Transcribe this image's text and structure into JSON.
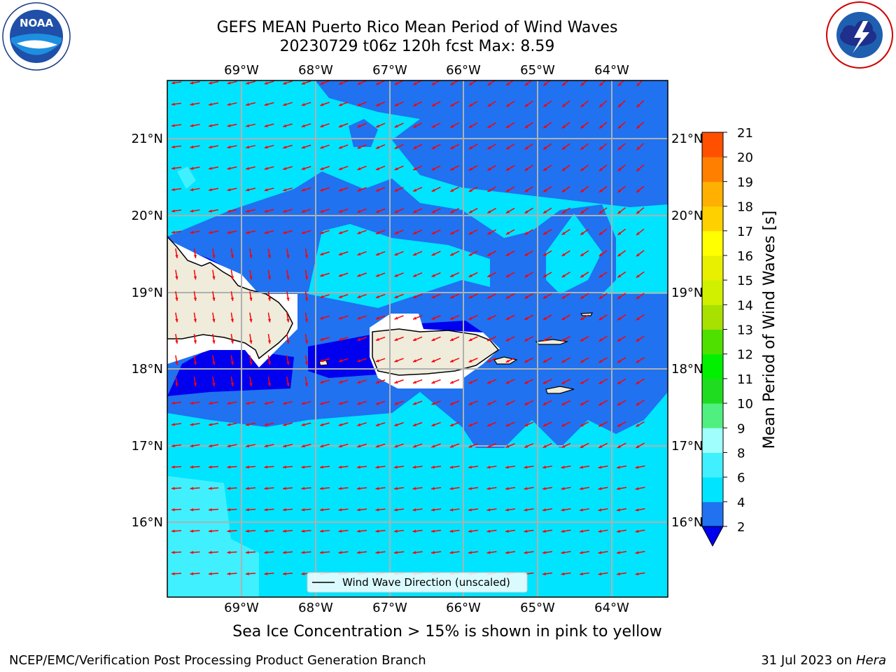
{
  "header": {
    "title_line1": "GEFS MEAN Puerto Rico Mean Period of Wind Waves",
    "title_line2": "20230729 t06z 120h fcst   Max: 8.59"
  },
  "logos": {
    "left": {
      "name": "noaa-logo",
      "text": "NOAA",
      "ring": "NATIONAL OCEANIC AND ATMOSPHERIC ADMINISTRATION · U.S. DEPARTMENT OF COMMERCE"
    },
    "right": {
      "name": "nws-logo",
      "ring": "NATIONAL WEATHER SERVICE"
    }
  },
  "map": {
    "lon_labels": [
      "69°W",
      "68°W",
      "67°W",
      "66°W",
      "65°W",
      "64°W"
    ],
    "lat_labels": [
      "21°N",
      "20°N",
      "19°N",
      "18°N",
      "17°N",
      "16°N"
    ],
    "legend_label": "Wind Wave Direction (unscaled)",
    "arrow_color": "#ff0000",
    "land_color": "#efecdc",
    "coast_color": "#000000",
    "gridline_color": "#b0b0b0"
  },
  "colorbar": {
    "label": "Mean Period of Wind Waves [s]",
    "ticks": [
      "2",
      "4",
      "6",
      "8",
      "9",
      "10",
      "11",
      "12",
      "13",
      "14",
      "15",
      "16",
      "17",
      "18",
      "19",
      "20",
      "21"
    ],
    "colors": [
      "#2072f0",
      "#00e4ff",
      "#40f0ff",
      "#a0fffc",
      "#50f080",
      "#20dc20",
      "#00f000",
      "#50e000",
      "#a8e000",
      "#d0f000",
      "#e8f000",
      "#ffff00",
      "#ffd000",
      "#ffb000",
      "#ff8000",
      "#ff5000",
      "#ff2000",
      "#ff0000"
    ],
    "extend_color": "#0000ee"
  },
  "chart_data": {
    "type": "heatmap",
    "title": "GEFS MEAN Puerto Rico Mean Period of Wind Waves",
    "subtitle": "20230729 t06z 120h fcst   Max: 8.59",
    "xlabel": "",
    "ylabel": "",
    "x_ticks": [
      "69°W",
      "68°W",
      "67°W",
      "66°W",
      "65°W",
      "64°W"
    ],
    "y_ticks": [
      "21°N",
      "20°N",
      "19°N",
      "18°N",
      "17°N",
      "16°N"
    ],
    "colorbar_levels": [
      2,
      4,
      6,
      8,
      9,
      10,
      11,
      12,
      13,
      14,
      15,
      16,
      17,
      18,
      19,
      20,
      21
    ],
    "max_value": 8.59,
    "legend": "Wind Wave Direction (unscaled)",
    "grid": true
  },
  "footer": {
    "seaice_note": "Sea Ice Concentration > 15% is shown in pink to yellow",
    "left": "NCEP/EMC/Verification Post Processing Product Generation Branch",
    "right_date": "31 Jul 2023 on ",
    "right_host": "Hera"
  }
}
